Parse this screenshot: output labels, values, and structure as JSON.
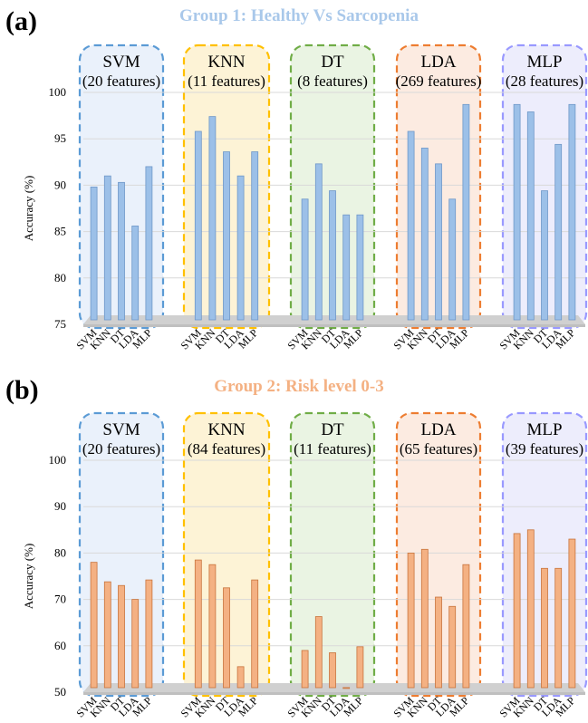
{
  "chart_data": [
    {
      "type": "bar",
      "panel_label": "(a)",
      "title": "Group 1: Healthy Vs Sarcopenia",
      "title_color": "#a9c8ea",
      "ylabel": "Accuracy (%)",
      "ylim": [
        75,
        100
      ],
      "yticks": [
        75,
        80,
        85,
        90,
        95,
        100
      ],
      "grid": true,
      "bar_color": "#9cc0e8",
      "bar_edge": "#6e97c8",
      "categories": [
        "SVM",
        "KNN",
        "DT",
        "LDA",
        "MLP"
      ],
      "groups": [
        {
          "name": "SVM",
          "features": "(20 features)",
          "frame_color": "#5b9bd5",
          "fill": "#eaf1fb",
          "values": [
            89.8,
            91.0,
            90.3,
            85.6,
            92.0
          ]
        },
        {
          "name": "KNN",
          "features": "(11 features)",
          "frame_color": "#ffc000",
          "fill": "#fdf3d6",
          "values": [
            95.8,
            97.4,
            93.6,
            91.0,
            93.6
          ]
        },
        {
          "name": "DT",
          "features": "(8 features)",
          "frame_color": "#70ad47",
          "fill": "#eaf4e3",
          "values": [
            88.5,
            92.3,
            89.4,
            86.8,
            86.8
          ]
        },
        {
          "name": "LDA",
          "features": "(269 features)",
          "frame_color": "#ed7d31",
          "fill": "#fcebe1",
          "values": [
            95.8,
            94.0,
            92.3,
            88.5,
            98.7
          ]
        },
        {
          "name": "MLP",
          "features": "(28 features)",
          "frame_color": "#9999ff",
          "fill": "#ededfc",
          "values": [
            98.7,
            97.9,
            89.4,
            94.4,
            98.7
          ]
        }
      ]
    },
    {
      "type": "bar",
      "panel_label": "(b)",
      "title": "Group 2: Risk level 0-3",
      "title_color": "#f4b183",
      "ylabel": "Accuracy (%)",
      "ylim": [
        50,
        100
      ],
      "yticks": [
        50,
        60,
        70,
        80,
        90,
        100
      ],
      "grid": true,
      "bar_color": "#f4b183",
      "bar_edge": "#c8743c",
      "categories": [
        "SVM",
        "KNN",
        "DT",
        "LDA",
        "MLP"
      ],
      "groups": [
        {
          "name": "SVM",
          "features": "(20 features)",
          "frame_color": "#5b9bd5",
          "fill": "#eaf1fb",
          "values": [
            78.0,
            73.8,
            73.0,
            70.0,
            74.2
          ]
        },
        {
          "name": "KNN",
          "features": "(84 features)",
          "frame_color": "#ffc000",
          "fill": "#fdf3d6",
          "values": [
            78.5,
            77.5,
            72.5,
            55.5,
            74.2
          ]
        },
        {
          "name": "DT",
          "features": "(11 features)",
          "frame_color": "#70ad47",
          "fill": "#eaf4e3",
          "values": [
            59.0,
            66.3,
            58.5,
            51.0,
            59.8
          ]
        },
        {
          "name": "LDA",
          "features": "(65 features)",
          "frame_color": "#ed7d31",
          "fill": "#fcebe1",
          "values": [
            80.0,
            80.8,
            70.5,
            68.5,
            77.5
          ]
        },
        {
          "name": "MLP",
          "features": "(39 features)",
          "frame_color": "#9999ff",
          "fill": "#ededfc",
          "values": [
            84.2,
            85.0,
            76.7,
            76.7,
            83.0
          ]
        }
      ]
    }
  ]
}
